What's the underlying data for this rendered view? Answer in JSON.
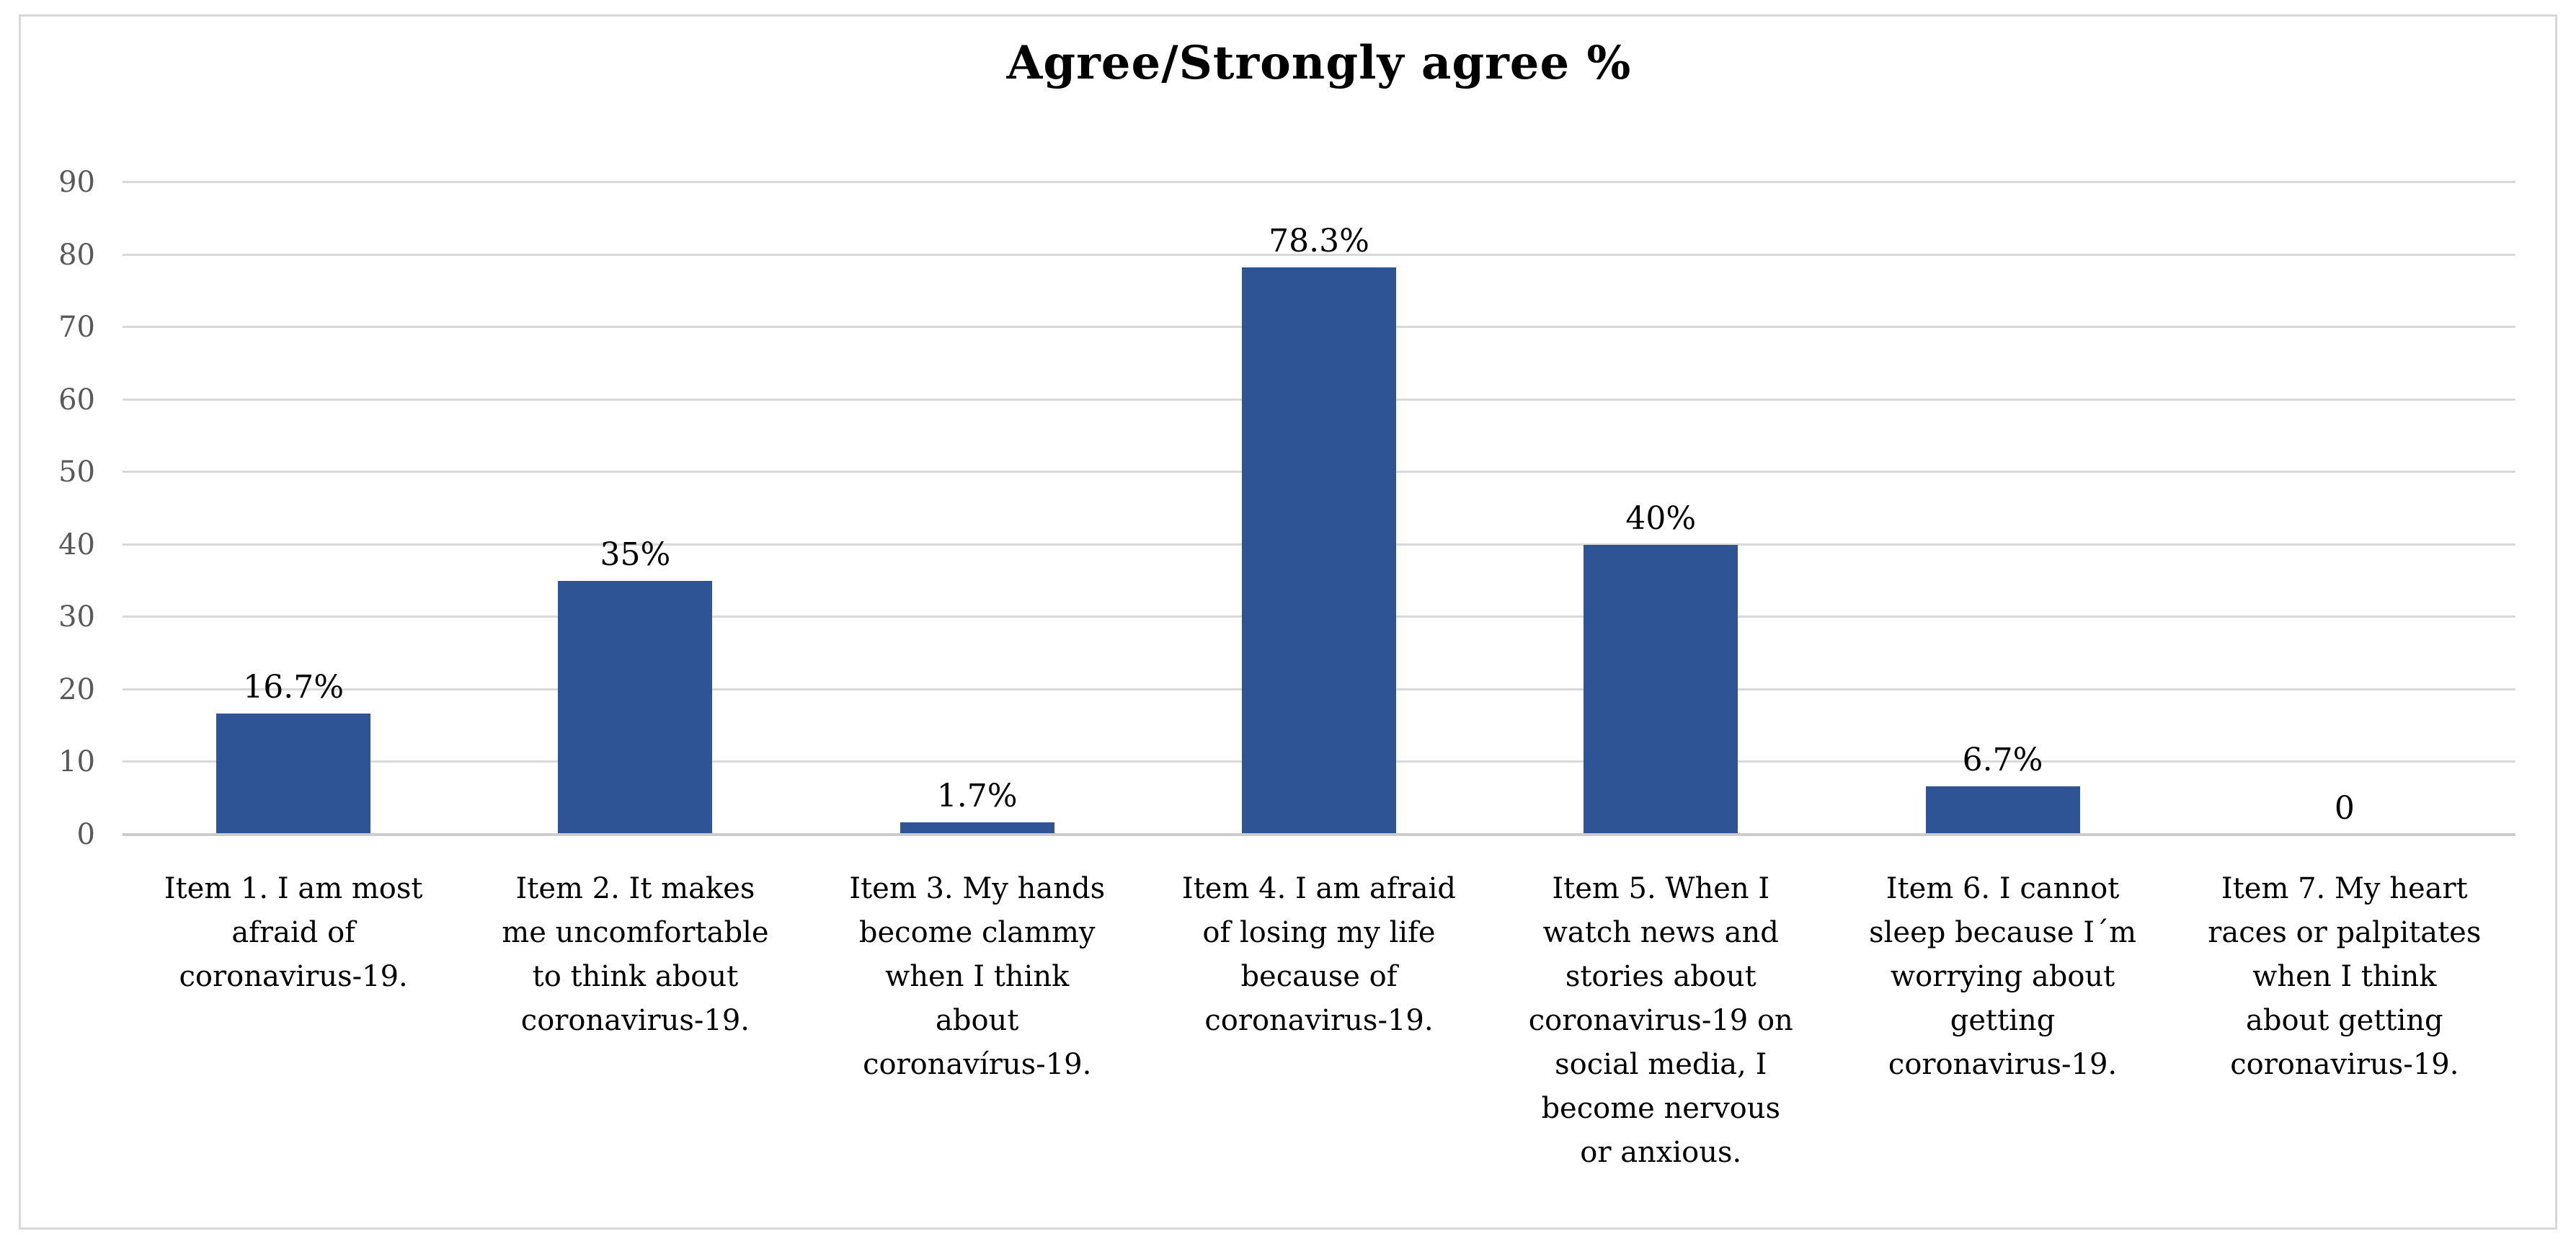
{
  "chart_data": {
    "type": "bar",
    "title": "Agree/Strongly agree %",
    "categories": [
      "Item 1. I am most\nafraid of\ncoronavirus-19.",
      "Item 2. It makes\nme uncomfortable\nto think about\ncoronavirus-19.",
      "Item 3. My hands\nbecome clammy\nwhen I think\nabout\ncoronavírus-19.",
      "Item 4. I am afraid\nof losing my life\nbecause of\ncoronavirus-19.",
      "Item 5. When I\nwatch news and\nstories about\ncoronavirus-19 on\nsocial media, I\nbecome nervous\nor anxious.",
      "Item 6. I cannot\nsleep because I´m\nworrying about\ngetting\ncoronavirus-19.",
      "Item 7. My heart\nraces or palpitates\nwhen I think\nabout getting\ncoronavirus-19."
    ],
    "values": [
      16.7,
      35,
      1.7,
      78.3,
      40,
      6.7,
      0
    ],
    "value_labels": [
      "16.7%",
      "35%",
      "1.7%",
      "78.3%",
      "40%",
      "6.7%",
      "0"
    ],
    "xlabel": "",
    "ylabel": "",
    "ylim": [
      0,
      90
    ],
    "yticks": [
      90,
      80,
      70,
      60,
      50,
      40,
      30,
      20,
      10,
      0
    ],
    "grid": true,
    "legend": false,
    "bar_color": "#2F5496",
    "gridline_color": "#D9D9D9",
    "axis_label_color": "#595959",
    "frame_color": "#D9D9D9"
  }
}
